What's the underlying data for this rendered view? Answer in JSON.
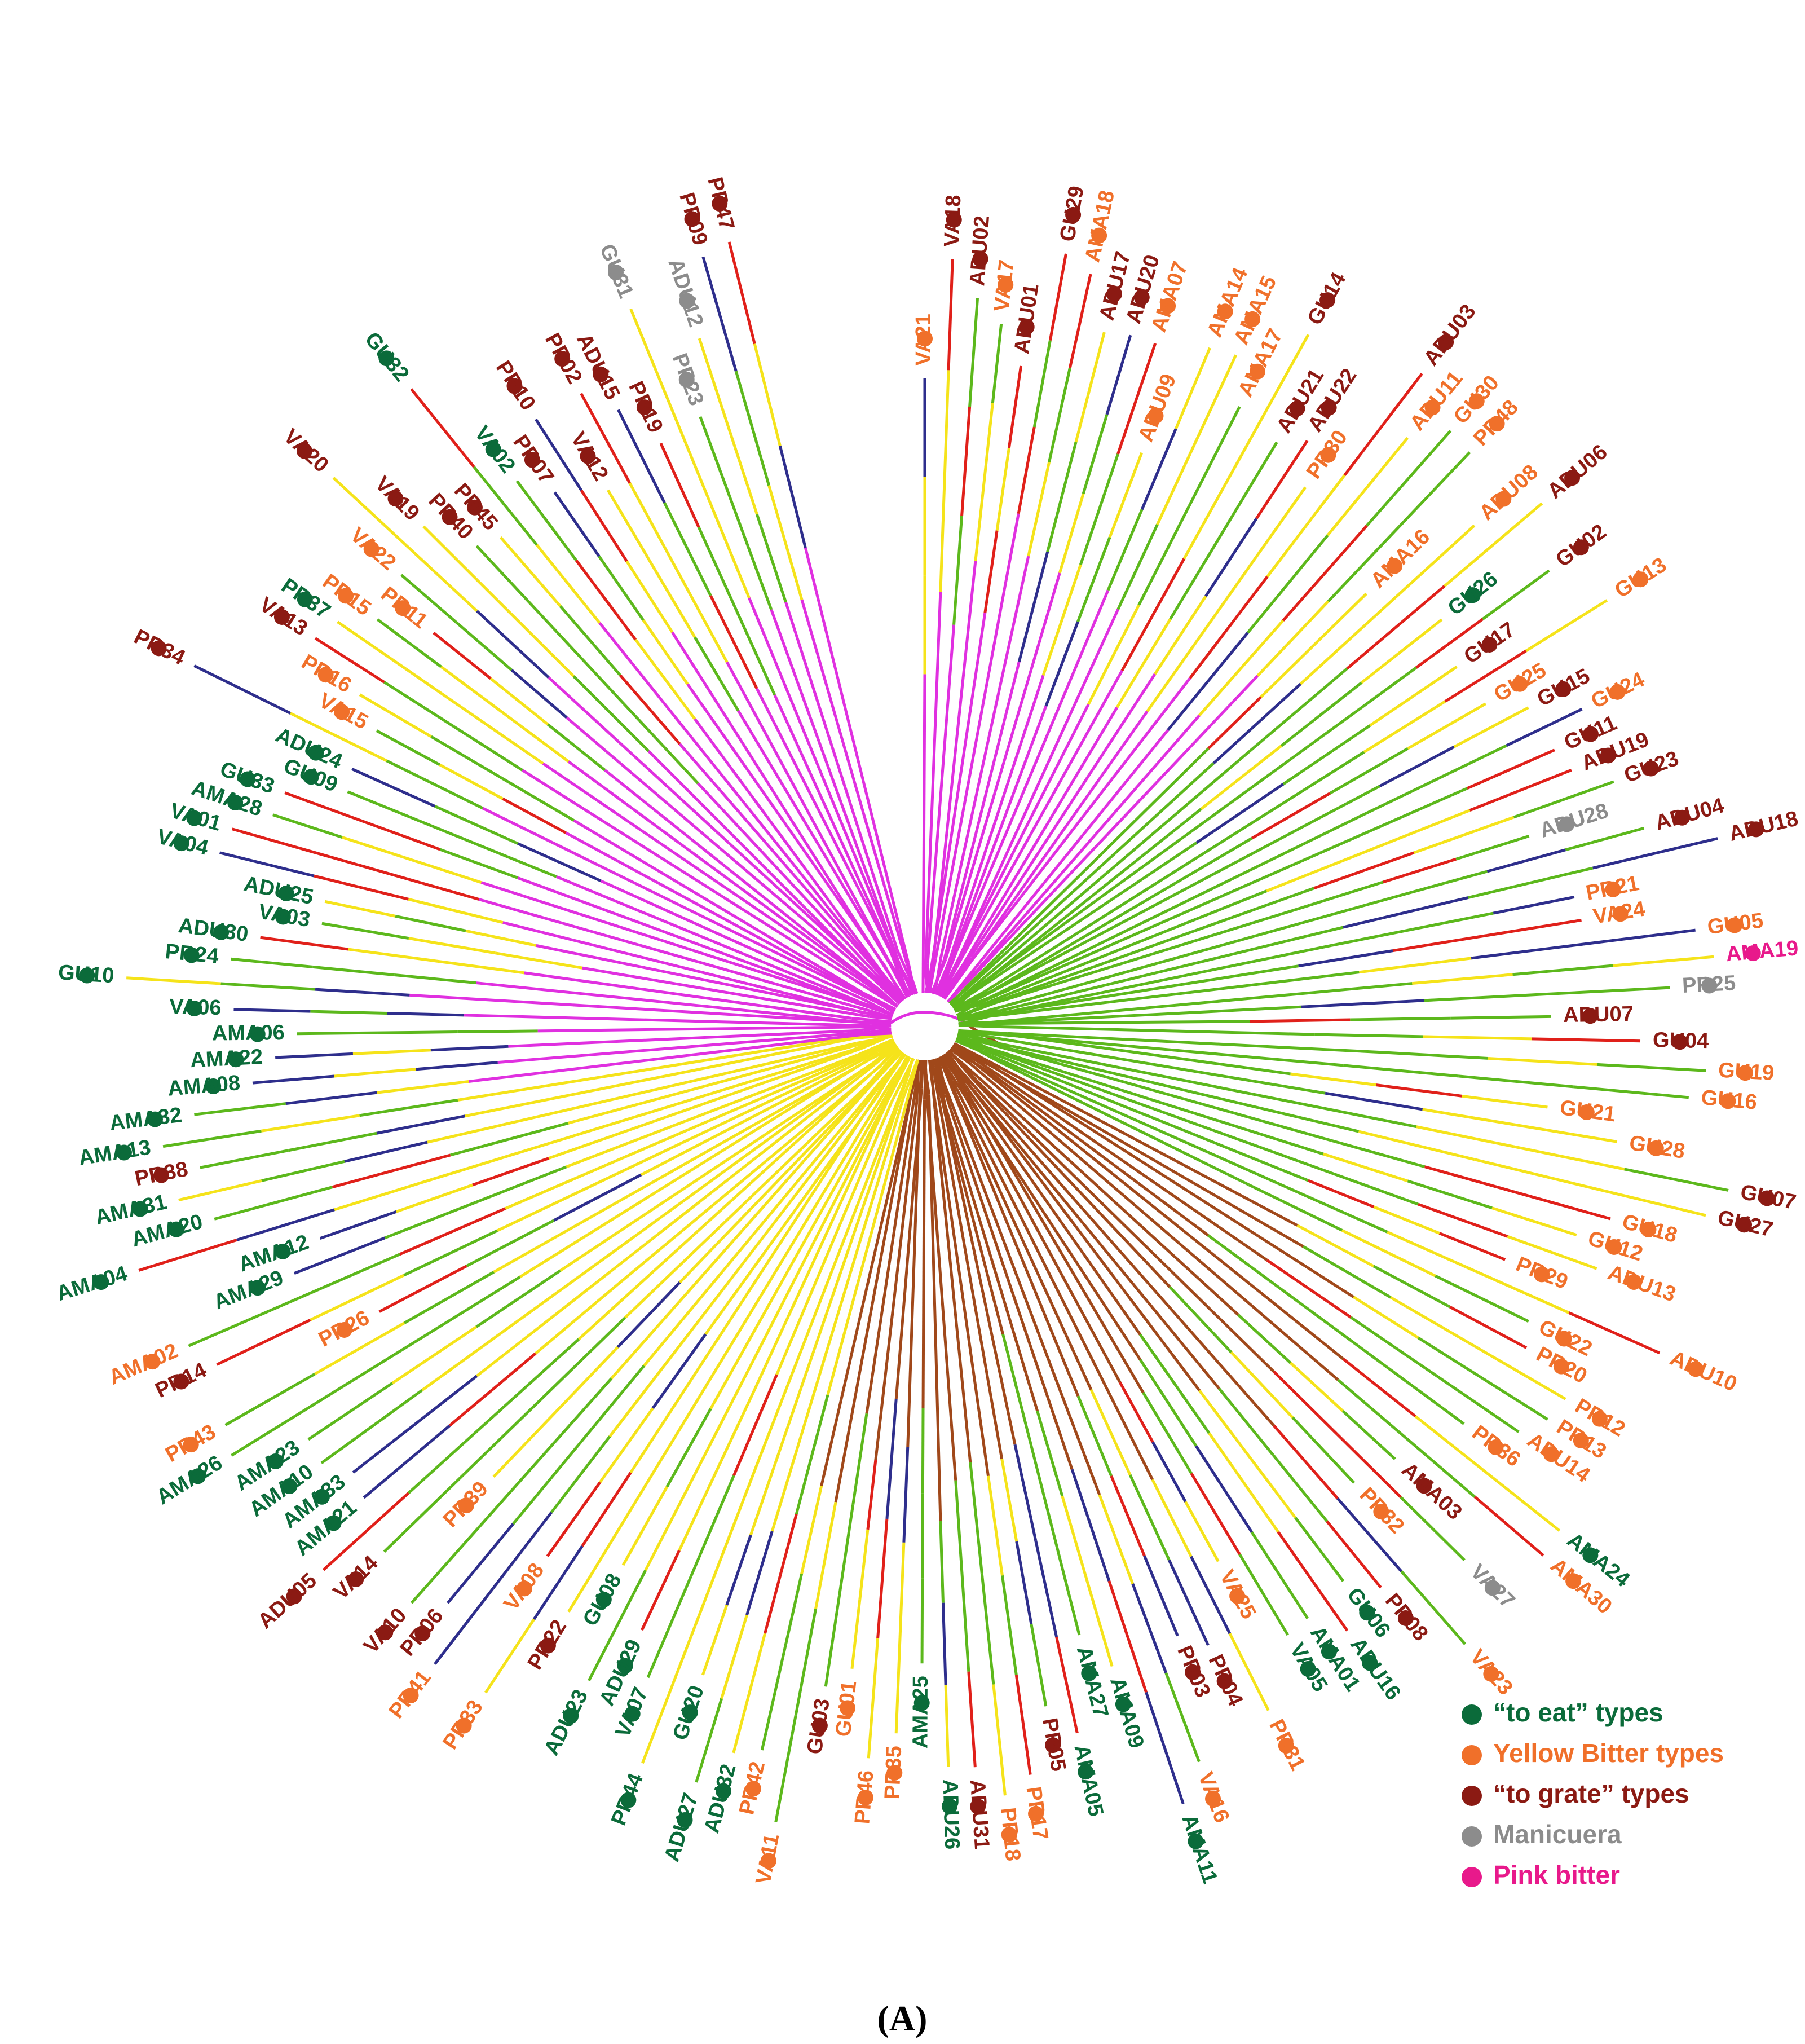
{
  "figure": {
    "panel_label": "(A)"
  },
  "colors": {
    "to_eat": "#0b6b3a",
    "yellow_bitter": "#f0702a",
    "to_grate": "#8b1a13",
    "manicuera": "#8c8c8c",
    "pink_bitter": "#e8198b",
    "branch_magenta": "#e030e0",
    "branch_green": "#5cb81c",
    "branch_brown": "#a0481a",
    "branch_yellow": "#f5e31a",
    "branch_red": "#e0201a",
    "branch_navy": "#2e2e8c"
  },
  "legend": [
    {
      "key": "to_eat",
      "label": "“to eat” types"
    },
    {
      "key": "yellow_bitter",
      "label": "Yellow Bitter types"
    },
    {
      "key": "to_grate",
      "label": "“to grate” types"
    },
    {
      "key": "manicuera",
      "label": "Manicuera"
    },
    {
      "key": "pink_bitter",
      "label": "Pink bitter"
    }
  ],
  "leaves": [
    {
      "id": "VA21",
      "type": "yellow_bitter"
    },
    {
      "id": "VA18",
      "type": "to_grate"
    },
    {
      "id": "ADU02",
      "type": "to_grate"
    },
    {
      "id": "VA17",
      "type": "yellow_bitter"
    },
    {
      "id": "ADU01",
      "type": "to_grate"
    },
    {
      "id": "GU29",
      "type": "to_grate"
    },
    {
      "id": "AMA18",
      "type": "yellow_bitter"
    },
    {
      "id": "ADU17",
      "type": "to_grate"
    },
    {
      "id": "ADU20",
      "type": "to_grate"
    },
    {
      "id": "AMA07",
      "type": "yellow_bitter"
    },
    {
      "id": "ADU09",
      "type": "yellow_bitter"
    },
    {
      "id": "AMA14",
      "type": "yellow_bitter"
    },
    {
      "id": "AMA15",
      "type": "yellow_bitter"
    },
    {
      "id": "AMA17",
      "type": "yellow_bitter"
    },
    {
      "id": "GU14",
      "type": "to_grate"
    },
    {
      "id": "ADU21",
      "type": "to_grate"
    },
    {
      "id": "ADU22",
      "type": "to_grate"
    },
    {
      "id": "PR30",
      "type": "yellow_bitter"
    },
    {
      "id": "ADU03",
      "type": "to_grate"
    },
    {
      "id": "ADU11",
      "type": "yellow_bitter"
    },
    {
      "id": "GU30",
      "type": "yellow_bitter"
    },
    {
      "id": "PR48",
      "type": "yellow_bitter"
    },
    {
      "id": "AMA16",
      "type": "yellow_bitter"
    },
    {
      "id": "ADU08",
      "type": "yellow_bitter"
    },
    {
      "id": "ADU06",
      "type": "to_grate"
    },
    {
      "id": "GU26",
      "type": "to_eat"
    },
    {
      "id": "GU02",
      "type": "to_grate"
    },
    {
      "id": "GU17",
      "type": "to_grate"
    },
    {
      "id": "GU13",
      "type": "yellow_bitter"
    },
    {
      "id": "GU25",
      "type": "yellow_bitter"
    },
    {
      "id": "GU15",
      "type": "to_grate"
    },
    {
      "id": "GU24",
      "type": "yellow_bitter"
    },
    {
      "id": "GU11",
      "type": "to_grate"
    },
    {
      "id": "ADU19",
      "type": "to_grate"
    },
    {
      "id": "GU23",
      "type": "to_grate"
    },
    {
      "id": "ADU28",
      "type": "manicuera"
    },
    {
      "id": "ADU04",
      "type": "to_grate"
    },
    {
      "id": "ADU18",
      "type": "to_grate"
    },
    {
      "id": "PR21",
      "type": "yellow_bitter"
    },
    {
      "id": "VA24",
      "type": "yellow_bitter"
    },
    {
      "id": "GU05",
      "type": "yellow_bitter"
    },
    {
      "id": "AMA19",
      "type": "pink_bitter"
    },
    {
      "id": "PR25",
      "type": "manicuera"
    },
    {
      "id": "ADU07",
      "type": "to_grate"
    },
    {
      "id": "GU04",
      "type": "to_grate"
    },
    {
      "id": "GU19",
      "type": "yellow_bitter"
    },
    {
      "id": "GU16",
      "type": "yellow_bitter"
    },
    {
      "id": "GU21",
      "type": "yellow_bitter"
    },
    {
      "id": "GU28",
      "type": "yellow_bitter"
    },
    {
      "id": "GU07",
      "type": "to_grate"
    },
    {
      "id": "GU27",
      "type": "to_grate"
    },
    {
      "id": "GU18",
      "type": "yellow_bitter"
    },
    {
      "id": "GU12",
      "type": "yellow_bitter"
    },
    {
      "id": "ADU13",
      "type": "yellow_bitter"
    },
    {
      "id": "PR29",
      "type": "yellow_bitter"
    },
    {
      "id": "ADU10",
      "type": "yellow_bitter"
    },
    {
      "id": "GU22",
      "type": "yellow_bitter"
    },
    {
      "id": "PR20",
      "type": "yellow_bitter"
    },
    {
      "id": "PR12",
      "type": "yellow_bitter"
    },
    {
      "id": "PR13",
      "type": "yellow_bitter"
    },
    {
      "id": "ADU14",
      "type": "yellow_bitter"
    },
    {
      "id": "PR36",
      "type": "yellow_bitter"
    },
    {
      "id": "AMA24",
      "type": "to_eat"
    },
    {
      "id": "AMA30",
      "type": "yellow_bitter"
    },
    {
      "id": "AMA03",
      "type": "to_grate"
    },
    {
      "id": "VA27",
      "type": "manicuera"
    },
    {
      "id": "PR32",
      "type": "yellow_bitter"
    },
    {
      "id": "VA23",
      "type": "yellow_bitter"
    },
    {
      "id": "PR08",
      "type": "to_grate"
    },
    {
      "id": "GU06",
      "type": "to_eat"
    },
    {
      "id": "ADU16",
      "type": "to_eat"
    },
    {
      "id": "AMA01",
      "type": "to_eat"
    },
    {
      "id": "VA05",
      "type": "to_eat"
    },
    {
      "id": "VA25",
      "type": "yellow_bitter"
    },
    {
      "id": "PR31",
      "type": "yellow_bitter"
    },
    {
      "id": "PR04",
      "type": "to_grate"
    },
    {
      "id": "PR03",
      "type": "to_grate"
    },
    {
      "id": "VA16",
      "type": "yellow_bitter"
    },
    {
      "id": "AMA11",
      "type": "to_eat"
    },
    {
      "id": "AMA09",
      "type": "to_eat"
    },
    {
      "id": "AMA27",
      "type": "to_eat"
    },
    {
      "id": "AMA05",
      "type": "to_eat"
    },
    {
      "id": "PR05",
      "type": "to_grate"
    },
    {
      "id": "PR17",
      "type": "yellow_bitter"
    },
    {
      "id": "PR18",
      "type": "yellow_bitter"
    },
    {
      "id": "ADU31",
      "type": "to_grate"
    },
    {
      "id": "ADU26",
      "type": "to_eat"
    },
    {
      "id": "AMA25",
      "type": "to_eat"
    },
    {
      "id": "PR35",
      "type": "yellow_bitter"
    },
    {
      "id": "PR46",
      "type": "yellow_bitter"
    },
    {
      "id": "GU01",
      "type": "yellow_bitter"
    },
    {
      "id": "GU03",
      "type": "to_grate"
    },
    {
      "id": "VA11",
      "type": "yellow_bitter"
    },
    {
      "id": "PR42",
      "type": "yellow_bitter"
    },
    {
      "id": "ADU32",
      "type": "to_eat"
    },
    {
      "id": "ADU27",
      "type": "to_eat"
    },
    {
      "id": "GU20",
      "type": "to_eat"
    },
    {
      "id": "PR44",
      "type": "to_eat"
    },
    {
      "id": "VA07",
      "type": "to_eat"
    },
    {
      "id": "ADU29",
      "type": "to_eat"
    },
    {
      "id": "ADU23",
      "type": "to_eat"
    },
    {
      "id": "GU08",
      "type": "to_eat"
    },
    {
      "id": "PR22",
      "type": "to_grate"
    },
    {
      "id": "PR33",
      "type": "yellow_bitter"
    },
    {
      "id": "VA08",
      "type": "yellow_bitter"
    },
    {
      "id": "PR41",
      "type": "yellow_bitter"
    },
    {
      "id": "PR06",
      "type": "to_grate"
    },
    {
      "id": "VA10",
      "type": "to_grate"
    },
    {
      "id": "PR39",
      "type": "yellow_bitter"
    },
    {
      "id": "VA14",
      "type": "to_grate"
    },
    {
      "id": "ADU05",
      "type": "to_grate"
    },
    {
      "id": "AMA21",
      "type": "to_eat"
    },
    {
      "id": "AMA33",
      "type": "to_eat"
    },
    {
      "id": "AMA10",
      "type": "to_eat"
    },
    {
      "id": "AMA23",
      "type": "to_eat"
    },
    {
      "id": "AMA26",
      "type": "to_eat"
    },
    {
      "id": "PR43",
      "type": "yellow_bitter"
    },
    {
      "id": "PR26",
      "type": "yellow_bitter"
    },
    {
      "id": "PR14",
      "type": "to_grate"
    },
    {
      "id": "AMA02",
      "type": "yellow_bitter"
    },
    {
      "id": "AMA29",
      "type": "to_eat"
    },
    {
      "id": "AMA12",
      "type": "to_eat"
    },
    {
      "id": "AMA04",
      "type": "to_eat"
    },
    {
      "id": "AMA20",
      "type": "to_eat"
    },
    {
      "id": "AMA31",
      "type": "to_eat"
    },
    {
      "id": "PR38",
      "type": "to_grate"
    },
    {
      "id": "AMA13",
      "type": "to_eat"
    },
    {
      "id": "AMA32",
      "type": "to_eat"
    },
    {
      "id": "AMA08",
      "type": "to_eat"
    },
    {
      "id": "AMA22",
      "type": "to_eat"
    },
    {
      "id": "AMA06",
      "type": "to_eat"
    },
    {
      "id": "VA06",
      "type": "to_eat"
    },
    {
      "id": "GU10",
      "type": "to_eat"
    },
    {
      "id": "PR24",
      "type": "to_eat"
    },
    {
      "id": "ADU30",
      "type": "to_eat"
    },
    {
      "id": "VA03",
      "type": "to_eat"
    },
    {
      "id": "ADU25",
      "type": "to_eat"
    },
    {
      "id": "VA04",
      "type": "to_eat"
    },
    {
      "id": "VA01",
      "type": "to_eat"
    },
    {
      "id": "AMA28",
      "type": "to_eat"
    },
    {
      "id": "GU33",
      "type": "to_eat"
    },
    {
      "id": "GU09",
      "type": "to_eat"
    },
    {
      "id": "ADU24",
      "type": "to_eat"
    },
    {
      "id": "PR34",
      "type": "to_grate"
    },
    {
      "id": "VA15",
      "type": "yellow_bitter"
    },
    {
      "id": "PR16",
      "type": "yellow_bitter"
    },
    {
      "id": "VA13",
      "type": "to_grate"
    },
    {
      "id": "PR37",
      "type": "to_eat"
    },
    {
      "id": "PR15",
      "type": "yellow_bitter"
    },
    {
      "id": "PR11",
      "type": "yellow_bitter"
    },
    {
      "id": "VA22",
      "type": "yellow_bitter"
    },
    {
      "id": "VA20",
      "type": "to_grate"
    },
    {
      "id": "VA19",
      "type": "to_grate"
    },
    {
      "id": "PR40",
      "type": "to_grate"
    },
    {
      "id": "PR45",
      "type": "to_grate"
    },
    {
      "id": "GU32",
      "type": "to_eat"
    },
    {
      "id": "VA02",
      "type": "to_eat"
    },
    {
      "id": "PR07",
      "type": "to_grate"
    },
    {
      "id": "PR10",
      "type": "to_grate"
    },
    {
      "id": "VA12",
      "type": "to_grate"
    },
    {
      "id": "PR02",
      "type": "to_grate"
    },
    {
      "id": "ADU15",
      "type": "to_grate"
    },
    {
      "id": "PR19",
      "type": "to_grate"
    },
    {
      "id": "GU31",
      "type": "manicuera"
    },
    {
      "id": "PR23",
      "type": "manicuera"
    },
    {
      "id": "ADU12",
      "type": "manicuera"
    },
    {
      "id": "PR09",
      "type": "to_grate"
    },
    {
      "id": "PR47",
      "type": "to_grate"
    }
  ]
}
